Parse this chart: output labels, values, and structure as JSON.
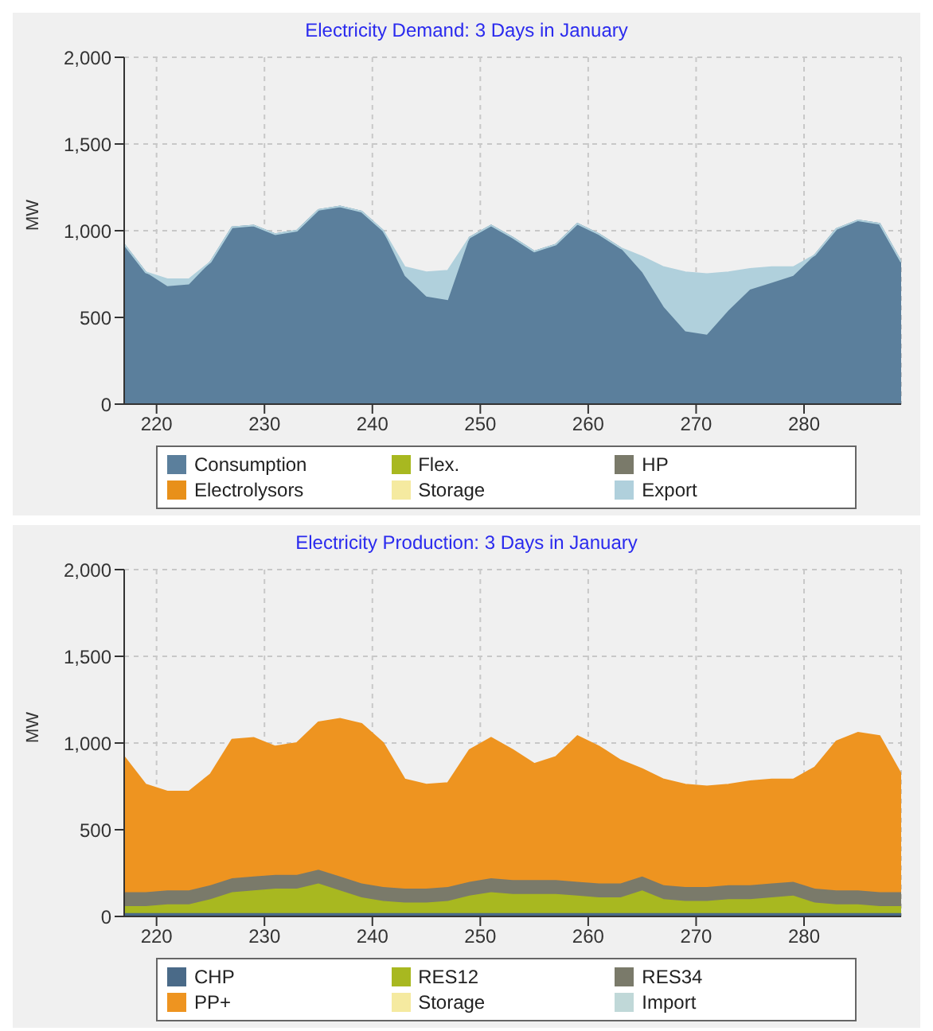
{
  "chart_data": [
    {
      "type": "area",
      "title": "Electricity Demand: 3 Days in January",
      "ylabel": "MW",
      "stacked": true,
      "grid": true,
      "legend": "bottom",
      "xlim": [
        217,
        289
      ],
      "xticks": [
        220,
        230,
        240,
        250,
        260,
        270,
        280
      ],
      "ylim": [
        0,
        2000
      ],
      "yticks": [
        {
          "value": 0,
          "label": "0"
        },
        {
          "value": 500,
          "label": "500"
        },
        {
          "value": 1000,
          "label": "1,000"
        },
        {
          "value": 1500,
          "label": "1,500"
        },
        {
          "value": 2000,
          "label": "2,000"
        }
      ],
      "x": [
        217,
        219,
        221,
        223,
        225,
        227,
        229,
        231,
        233,
        235,
        237,
        239,
        241,
        243,
        245,
        247,
        249,
        251,
        253,
        255,
        257,
        259,
        261,
        263,
        265,
        267,
        269,
        271,
        273,
        275,
        277,
        279,
        281,
        283,
        285,
        287,
        289
      ],
      "series": [
        {
          "name": "Consumption",
          "color": "#5b7f9c",
          "values": [
            920,
            760,
            680,
            690,
            820,
            1020,
            1030,
            980,
            1000,
            1120,
            1140,
            1110,
            1000,
            740,
            620,
            600,
            960,
            1030,
            960,
            880,
            920,
            1040,
            980,
            900,
            760,
            560,
            420,
            400,
            540,
            660,
            700,
            740,
            860,
            1010,
            1060,
            1040,
            820
          ]
        },
        {
          "name": "Flex.",
          "color": "#a8b820",
          "values": [
            null,
            null,
            null,
            null,
            null,
            null,
            null,
            null,
            null,
            null,
            null,
            null,
            null,
            null,
            null,
            null,
            null,
            null,
            null,
            null,
            null,
            null,
            null,
            null,
            null,
            null,
            null,
            null,
            null,
            null,
            null,
            null,
            null,
            null,
            null,
            null,
            null
          ]
        },
        {
          "name": "HP",
          "color": "#7a7a6a",
          "values": [
            null,
            null,
            null,
            null,
            null,
            null,
            null,
            null,
            null,
            null,
            null,
            null,
            null,
            null,
            null,
            null,
            null,
            null,
            null,
            null,
            null,
            null,
            null,
            null,
            null,
            null,
            null,
            null,
            null,
            null,
            null,
            null,
            null,
            null,
            null,
            null,
            null
          ]
        },
        {
          "name": "Electrolysors",
          "color": "#e8901a",
          "values": [
            null,
            null,
            null,
            null,
            null,
            null,
            null,
            null,
            null,
            null,
            null,
            null,
            null,
            null,
            null,
            null,
            null,
            null,
            null,
            null,
            null,
            null,
            null,
            null,
            null,
            null,
            null,
            null,
            null,
            null,
            null,
            null,
            null,
            null,
            null,
            null,
            null
          ]
        },
        {
          "name": "Storage",
          "color": "#f5eaa0",
          "values": [
            null,
            null,
            null,
            null,
            null,
            null,
            null,
            null,
            null,
            null,
            null,
            null,
            null,
            null,
            null,
            null,
            null,
            null,
            null,
            null,
            null,
            null,
            null,
            null,
            null,
            null,
            null,
            null,
            null,
            null,
            null,
            null,
            null,
            null,
            null,
            null,
            null
          ]
        },
        {
          "name": "Export",
          "color": "#b0d0dc",
          "values": [
            0,
            0,
            40,
            30,
            0,
            0,
            0,
            0,
            0,
            0,
            0,
            0,
            0,
            50,
            140,
            170,
            0,
            0,
            0,
            0,
            0,
            0,
            0,
            0,
            90,
            230,
            340,
            350,
            220,
            120,
            90,
            50,
            0,
            0,
            0,
            0,
            0
          ]
        }
      ]
    },
    {
      "type": "area",
      "title": "Electricity Production: 3 Days in January",
      "ylabel": "MW",
      "stacked": true,
      "grid": true,
      "legend": "bottom",
      "xlim": [
        217,
        289
      ],
      "xticks": [
        220,
        230,
        240,
        250,
        260,
        270,
        280
      ],
      "ylim": [
        0,
        2000
      ],
      "yticks": [
        {
          "value": 0,
          "label": "0"
        },
        {
          "value": 500,
          "label": "500"
        },
        {
          "value": 1000,
          "label": "1,000"
        },
        {
          "value": 1500,
          "label": "1,500"
        },
        {
          "value": 2000,
          "label": "2,000"
        }
      ],
      "x": [
        217,
        219,
        221,
        223,
        225,
        227,
        229,
        231,
        233,
        235,
        237,
        239,
        241,
        243,
        245,
        247,
        249,
        251,
        253,
        255,
        257,
        259,
        261,
        263,
        265,
        267,
        269,
        271,
        273,
        275,
        277,
        279,
        281,
        283,
        285,
        287,
        289
      ],
      "series": [
        {
          "name": "CHP",
          "color": "#4a6a88",
          "values": [
            20,
            20,
            20,
            20,
            20,
            20,
            20,
            20,
            20,
            20,
            20,
            20,
            20,
            20,
            20,
            20,
            20,
            20,
            20,
            20,
            20,
            20,
            20,
            20,
            20,
            20,
            20,
            20,
            20,
            20,
            20,
            20,
            20,
            20,
            20,
            20,
            20
          ]
        },
        {
          "name": "RES12",
          "color": "#a8b820",
          "values": [
            40,
            40,
            50,
            50,
            80,
            120,
            130,
            140,
            140,
            170,
            130,
            90,
            70,
            60,
            60,
            70,
            100,
            120,
            110,
            110,
            110,
            100,
            90,
            90,
            130,
            80,
            70,
            70,
            80,
            80,
            90,
            100,
            60,
            50,
            50,
            40,
            40
          ]
        },
        {
          "name": "RES34",
          "color": "#7a7a6a",
          "values": [
            80,
            80,
            80,
            80,
            80,
            80,
            80,
            80,
            80,
            80,
            80,
            80,
            80,
            80,
            80,
            80,
            80,
            80,
            80,
            80,
            80,
            80,
            80,
            80,
            80,
            80,
            80,
            80,
            80,
            80,
            80,
            80,
            80,
            80,
            80,
            80,
            80
          ]
        },
        {
          "name": "PP+",
          "color": "#ee9420",
          "values": [
            780,
            620,
            570,
            570,
            640,
            800,
            800,
            740,
            760,
            850,
            910,
            920,
            830,
            630,
            600,
            600,
            760,
            810,
            750,
            670,
            710,
            840,
            790,
            710,
            620,
            610,
            590,
            580,
            580,
            600,
            600,
            590,
            700,
            860,
            910,
            900,
            680
          ]
        },
        {
          "name": "Storage",
          "color": "#f5eaa0",
          "values": [
            null,
            null,
            null,
            null,
            null,
            null,
            null,
            null,
            null,
            null,
            null,
            null,
            null,
            null,
            null,
            null,
            null,
            null,
            null,
            null,
            null,
            null,
            null,
            null,
            null,
            null,
            null,
            null,
            null,
            null,
            null,
            null,
            null,
            null,
            null,
            null,
            null
          ]
        },
        {
          "name": "Import",
          "color": "#c0d8d8",
          "values": [
            null,
            null,
            null,
            null,
            null,
            null,
            null,
            null,
            null,
            null,
            null,
            null,
            null,
            null,
            null,
            null,
            null,
            null,
            null,
            null,
            null,
            null,
            null,
            null,
            null,
            null,
            null,
            null,
            null,
            null,
            null,
            null,
            null,
            null,
            null,
            null,
            null
          ]
        }
      ]
    }
  ]
}
